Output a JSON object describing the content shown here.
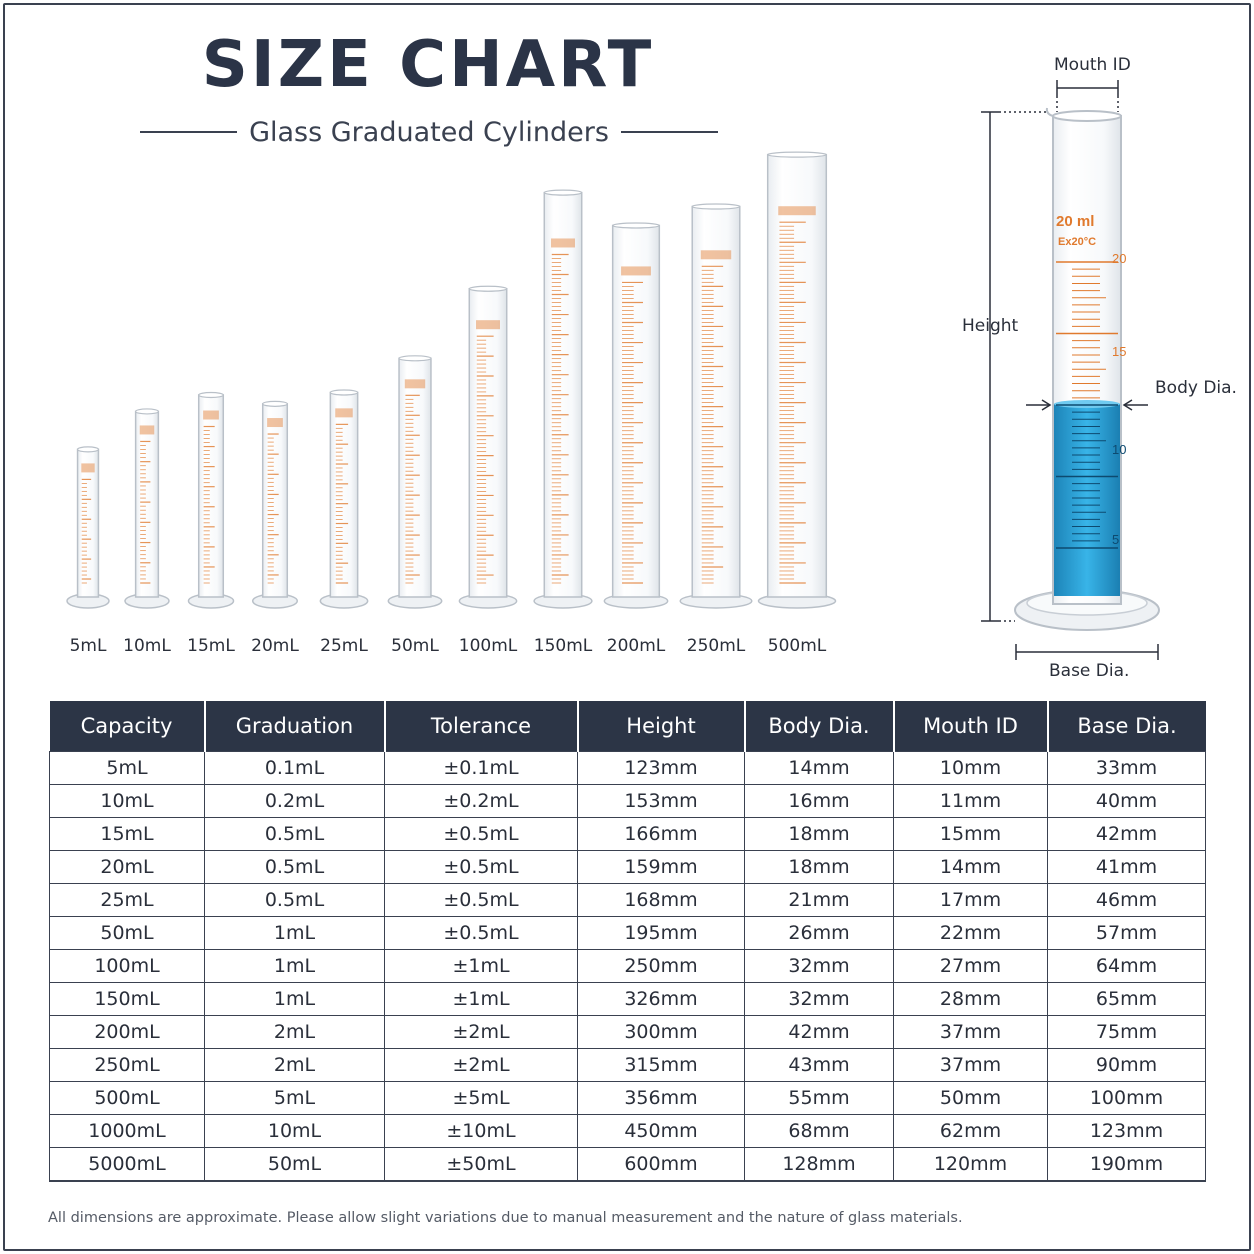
{
  "header": {
    "title": "SIZE CHART",
    "subtitle": "Glass Graduated Cylinders"
  },
  "cylinders": [
    {
      "label": "5mL",
      "height_mm": 123,
      "body_mm": 14,
      "base_mm": 33
    },
    {
      "label": "10mL",
      "height_mm": 153,
      "body_mm": 16,
      "base_mm": 40
    },
    {
      "label": "15mL",
      "height_mm": 166,
      "body_mm": 18,
      "base_mm": 42
    },
    {
      "label": "20mL",
      "height_mm": 159,
      "body_mm": 18,
      "base_mm": 41
    },
    {
      "label": "25mL",
      "height_mm": 168,
      "body_mm": 21,
      "base_mm": 46
    },
    {
      "label": "50mL",
      "height_mm": 195,
      "body_mm": 26,
      "base_mm": 57
    },
    {
      "label": "100mL",
      "height_mm": 250,
      "body_mm": 32,
      "base_mm": 64
    },
    {
      "label": "150mL",
      "height_mm": 326,
      "body_mm": 32,
      "base_mm": 65
    },
    {
      "label": "200mL",
      "height_mm": 300,
      "body_mm": 42,
      "base_mm": 75
    },
    {
      "label": "250mL",
      "height_mm": 315,
      "body_mm": 43,
      "base_mm": 90
    },
    {
      "label": "500mL",
      "height_mm": 356,
      "body_mm": 55,
      "base_mm": 100
    }
  ],
  "diagram": {
    "mouth_label": "Mouth ID",
    "height_label": "Height",
    "body_label": "Body Dia.",
    "base_label": "Base Dia.",
    "cylinder_marking": "20 ml",
    "cylinder_temp": "Ex20°C",
    "mark_20": "20",
    "mark_15": "15",
    "mark_10": "10",
    "mark_5": "5",
    "liquid_color": "#2a9fd6",
    "graduation_color": "#e07a2e"
  },
  "table": {
    "headers": [
      "Capacity",
      "Graduation",
      "Tolerance",
      "Height",
      "Body Dia.",
      "Mouth ID",
      "Base Dia."
    ],
    "rows": [
      [
        "5mL",
        "0.1mL",
        "±0.1mL",
        "123mm",
        "14mm",
        "10mm",
        "33mm"
      ],
      [
        "10mL",
        "0.2mL",
        "±0.2mL",
        "153mm",
        "16mm",
        "11mm",
        "40mm"
      ],
      [
        "15mL",
        "0.5mL",
        "±0.5mL",
        "166mm",
        "18mm",
        "15mm",
        "42mm"
      ],
      [
        "20mL",
        "0.5mL",
        "±0.5mL",
        "159mm",
        "18mm",
        "14mm",
        "41mm"
      ],
      [
        "25mL",
        "0.5mL",
        "±0.5mL",
        "168mm",
        "21mm",
        "17mm",
        "46mm"
      ],
      [
        "50mL",
        "1mL",
        "±0.5mL",
        "195mm",
        "26mm",
        "22mm",
        "57mm"
      ],
      [
        "100mL",
        "1mL",
        "±1mL",
        "250mm",
        "32mm",
        "27mm",
        "64mm"
      ],
      [
        "150mL",
        "1mL",
        "±1mL",
        "326mm",
        "32mm",
        "28mm",
        "65mm"
      ],
      [
        "200mL",
        "2mL",
        "±2mL",
        "300mm",
        "42mm",
        "37mm",
        "75mm"
      ],
      [
        "250mL",
        "2mL",
        "±2mL",
        "315mm",
        "43mm",
        "37mm",
        "90mm"
      ],
      [
        "500mL",
        "5mL",
        "±5mL",
        "356mm",
        "55mm",
        "50mm",
        "100mm"
      ],
      [
        "1000mL",
        "10mL",
        "±10mL",
        "450mm",
        "68mm",
        "62mm",
        "123mm"
      ],
      [
        "5000mL",
        "50mL",
        "±50mL",
        "600mm",
        "128mm",
        "120mm",
        "190mm"
      ]
    ]
  },
  "footnote": "All dimensions are approximate. Please allow slight variations due to manual measurement and the nature of glass materials.",
  "colors": {
    "header_bg": "#2c3546",
    "title": "#2b3447",
    "glass_outline": "#b9c0c8"
  }
}
